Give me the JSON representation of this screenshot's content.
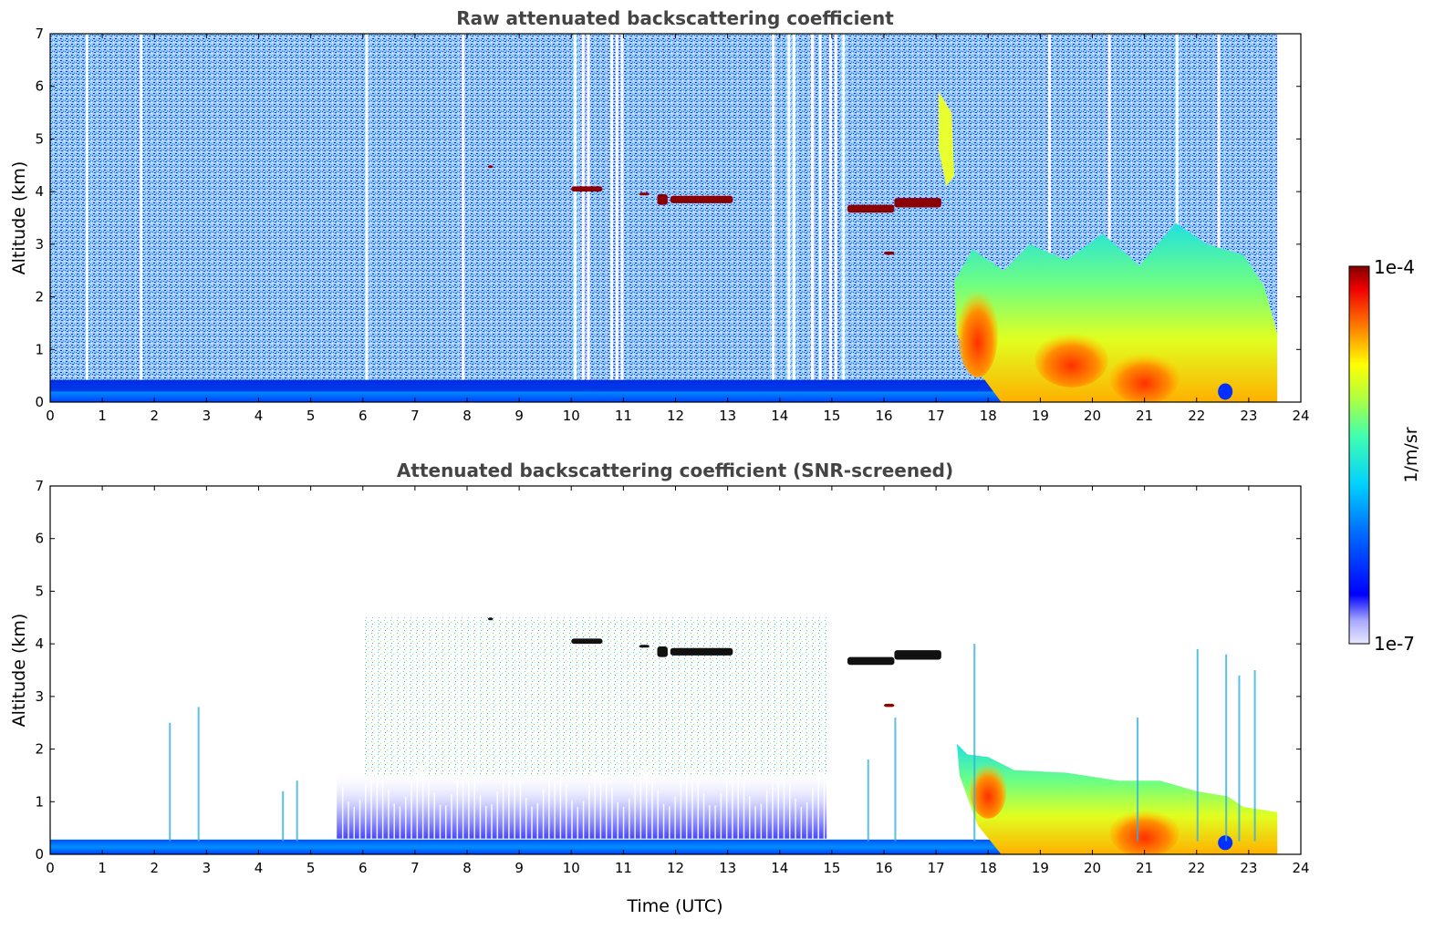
{
  "chart_data": [
    {
      "type": "heatmap",
      "title": "Raw attenuated backscattering coefficient",
      "xlabel": "",
      "ylabel": "Altitude (km)",
      "xlim": [
        0,
        24
      ],
      "ylim": [
        0,
        7
      ],
      "xticks": [
        "0",
        "1",
        "2",
        "3",
        "4",
        "5",
        "6",
        "7",
        "8",
        "9",
        "10",
        "11",
        "12",
        "13",
        "14",
        "15",
        "16",
        "17",
        "18",
        "19",
        "20",
        "21",
        "22",
        "23",
        "24"
      ],
      "yticks": [
        "0",
        "1",
        "2",
        "3",
        "4",
        "5",
        "6",
        "7"
      ],
      "data_end_time": 23.55,
      "features": [
        {
          "name": "boundary layer aerosol",
          "x": [
            0,
            18.2
          ],
          "y": [
            0,
            0.35
          ]
        },
        {
          "name": "cloud layer",
          "x": [
            10,
            10.6
          ],
          "y": [
            3.95,
            4.1
          ]
        },
        {
          "name": "cloud layer",
          "x": [
            11.6,
            13.1
          ],
          "y": [
            3.75,
            3.95
          ]
        },
        {
          "name": "cloud layer",
          "x": [
            15.3,
            17.1
          ],
          "y": [
            3.6,
            3.9
          ]
        },
        {
          "name": "precipitating cloud",
          "x": [
            17.2,
            23.55
          ],
          "y": [
            0,
            6.0
          ]
        }
      ]
    },
    {
      "type": "heatmap",
      "title": "Attenuated backscattering coefficient (SNR-screened)",
      "xlabel": "Time (UTC)",
      "ylabel": "Altitude (km)",
      "xlim": [
        0,
        24
      ],
      "ylim": [
        0,
        7
      ],
      "xticks": [
        "0",
        "1",
        "2",
        "3",
        "4",
        "5",
        "6",
        "7",
        "8",
        "9",
        "10",
        "11",
        "12",
        "13",
        "14",
        "15",
        "16",
        "17",
        "18",
        "19",
        "20",
        "21",
        "22",
        "23",
        "24"
      ],
      "yticks": [
        "0",
        "1",
        "2",
        "3",
        "4",
        "5",
        "6",
        "7"
      ],
      "data_end_time": 23.55,
      "features": [
        {
          "name": "boundary layer aerosol",
          "x": [
            0,
            18.2
          ],
          "y": [
            0,
            0.3
          ]
        },
        {
          "name": "residual layer",
          "x": [
            5.5,
            14.8
          ],
          "y": [
            0.3,
            1.5
          ]
        },
        {
          "name": "cloud layer",
          "x": [
            11.6,
            13.1
          ],
          "y": [
            3.75,
            3.95
          ]
        },
        {
          "name": "cloud layer",
          "x": [
            15.3,
            17.1
          ],
          "y": [
            3.6,
            3.9
          ]
        },
        {
          "name": "precipitating cloud",
          "x": [
            17.4,
            23.55
          ],
          "y": [
            0,
            2.1
          ]
        }
      ]
    }
  ],
  "colorbar": {
    "label": "1/m/sr",
    "min_label": "1e-7",
    "max_label": "1e-4",
    "colormap": "jet",
    "scale": "log"
  },
  "colors": {
    "title_gray": "#444444",
    "cloud_dark_red": "#8b0000",
    "cloud_black": "#111111"
  }
}
